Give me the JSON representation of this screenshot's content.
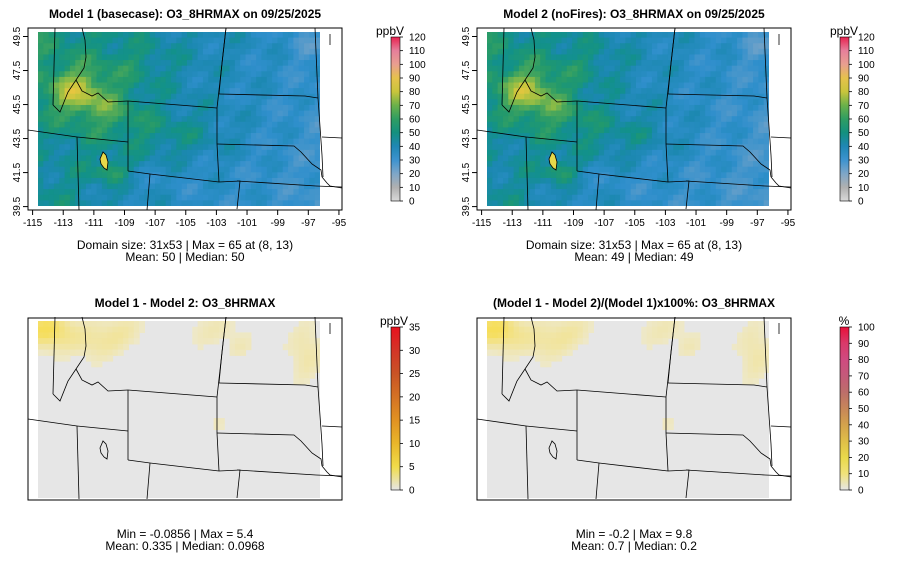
{
  "panels": [
    {
      "title": "Model 1 (basecase): O3_8HRMAX on 09/25/2025",
      "stats_line1": "Domain size: 31x53 | Max = 65 at (8, 13)",
      "stats_line2": "Mean: 50 |  Median: 50",
      "legend": {
        "unit": "ppbV",
        "ticks": [
          "0",
          "10",
          "20",
          "30",
          "40",
          "50",
          "60",
          "70",
          "80",
          "90",
          "100",
          "110",
          "120"
        ],
        "colors": [
          "#dadada",
          "#b0b0b0",
          "#7ea6c8",
          "#3d93cf",
          "#1f87b4",
          "#14907f",
          "#2f9d62",
          "#6bb14a",
          "#c9c53c",
          "#e6c24c",
          "#e89f90",
          "#e67f9b",
          "#e8224f"
        ]
      },
      "x_ticks": [
        "-115",
        "-113",
        "-111",
        "-109",
        "-107",
        "-105",
        "-103",
        "-101",
        "-99",
        "-97",
        "-95"
      ],
      "y_ticks": [
        "39.5",
        "41.5",
        "43.5",
        "45.5",
        "47.5",
        "49.5"
      ]
    },
    {
      "title": "Model 2 (noFires): O3_8HRMAX on 09/25/2025",
      "stats_line1": "Domain size: 31x53 | Max = 65 at (8, 13)",
      "stats_line2": "Mean: 49 |  Median: 49",
      "legend": {
        "unit": "ppbV",
        "ticks": [
          "0",
          "10",
          "20",
          "30",
          "40",
          "50",
          "60",
          "70",
          "80",
          "90",
          "100",
          "110",
          "120"
        ],
        "colors": [
          "#dadada",
          "#b0b0b0",
          "#7ea6c8",
          "#3d93cf",
          "#1f87b4",
          "#14907f",
          "#2f9d62",
          "#6bb14a",
          "#c9c53c",
          "#e6c24c",
          "#e89f90",
          "#e67f9b",
          "#e8224f"
        ]
      },
      "x_ticks": [
        "-115",
        "-113",
        "-111",
        "-109",
        "-107",
        "-105",
        "-103",
        "-101",
        "-99",
        "-97",
        "-95"
      ],
      "y_ticks": [
        "39.5",
        "41.5",
        "43.5",
        "45.5",
        "47.5",
        "49.5"
      ]
    },
    {
      "title": "Model 1 - Model 2: O3_8HRMAX",
      "stats_line1": "Min = -0.0856 | Max = 5.4",
      "stats_line2": "Mean: 0.335 |  Median: 0.0968",
      "legend": {
        "unit": "ppbV",
        "ticks": [
          "0",
          "5",
          "10",
          "15",
          "20",
          "25",
          "30",
          "35"
        ],
        "colors": [
          "#e6e6e6",
          "#f0dc4a",
          "#e9b62a",
          "#e19222",
          "#d47224",
          "#c95325",
          "#d33527",
          "#e8121e"
        ]
      },
      "x_ticks": [],
      "y_ticks": []
    },
    {
      "title": "(Model 1 - Model 2)/(Model 1)x100%: O3_8HRMAX",
      "stats_line1": "Min = -0.2 | Max = 9.8",
      "stats_line2": "Mean: 0.7 |  Median: 0.2",
      "legend": {
        "unit": "%",
        "ticks": [
          "0",
          "10",
          "20",
          "30",
          "40",
          "50",
          "60",
          "70",
          "80",
          "90",
          "100"
        ],
        "colors": [
          "#e6e6e6",
          "#f0e27a",
          "#e9d94a",
          "#dfbe48",
          "#d3a24c",
          "#c78659",
          "#bd6e6a",
          "#c45a7a",
          "#cf4a80",
          "#d93a6a",
          "#e8103a"
        ]
      },
      "x_ticks": [],
      "y_ticks": []
    }
  ],
  "chart_data": [
    {
      "type": "heatmap",
      "title": "Model 1 (basecase): O3_8HRMAX on 09/25/2025",
      "xlabel": "",
      "ylabel": "",
      "xlim": [
        -115.3,
        -94.8
      ],
      "ylim": [
        39.3,
        50.0
      ],
      "colorbar_label": "ppbV",
      "colorbar_range": [
        0,
        120
      ],
      "grid_size": "31x53",
      "max": 65,
      "max_at": [
        8,
        13
      ],
      "mean": 50,
      "median": 50
    },
    {
      "type": "heatmap",
      "title": "Model 2 (noFires): O3_8HRMAX on 09/25/2025",
      "xlabel": "",
      "ylabel": "",
      "xlim": [
        -115.3,
        -94.8
      ],
      "ylim": [
        39.3,
        50.0
      ],
      "colorbar_label": "ppbV",
      "colorbar_range": [
        0,
        120
      ],
      "grid_size": "31x53",
      "max": 65,
      "max_at": [
        8,
        13
      ],
      "mean": 49,
      "median": 49
    },
    {
      "type": "heatmap",
      "title": "Model 1 - Model 2: O3_8HRMAX",
      "colorbar_label": "ppbV",
      "colorbar_range": [
        0,
        35
      ],
      "min": -0.0856,
      "max": 5.4,
      "mean": 0.335,
      "median": 0.0968
    },
    {
      "type": "heatmap",
      "title": "(Model 1 - Model 2)/(Model 1)x100%: O3_8HRMAX",
      "colorbar_label": "%",
      "colorbar_range": [
        0,
        100
      ],
      "min": -0.2,
      "max": 9.8,
      "mean": 0.7,
      "median": 0.2
    }
  ]
}
